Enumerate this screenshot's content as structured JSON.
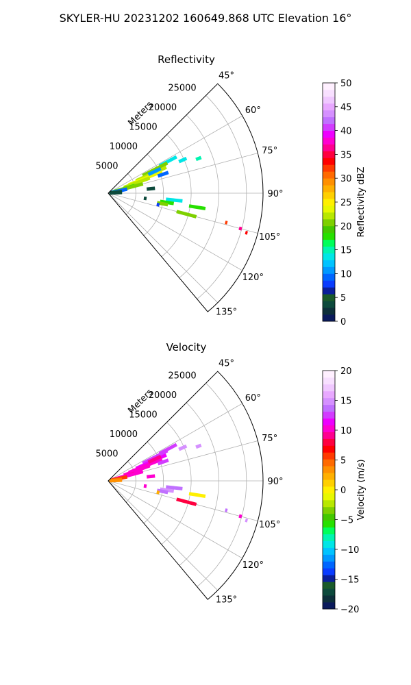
{
  "figure": {
    "suptitle": "SKYLER-HU  20231202  160649.868 UTC Elevation 16°"
  },
  "chart_data": [
    {
      "type": "polar-sector",
      "title": "Reflectivity",
      "radial_label": "Meters",
      "radial_ticks": [
        5000,
        10000,
        15000,
        20000,
        25000
      ],
      "radial_tick_labels": [
        "5000",
        "10000",
        "15000",
        "20000",
        "25000"
      ],
      "r_max": 28000,
      "angle_range_deg": [
        45,
        140
      ],
      "angle_ticks": [
        45,
        60,
        75,
        90,
        105,
        120,
        135
      ],
      "angle_tick_labels": [
        "45°",
        "60°",
        "75°",
        "90°",
        "105°",
        "120°",
        "135°"
      ],
      "grid": true,
      "colorbar": {
        "label": "Reflectivity dBZ",
        "range": [
          0,
          50
        ],
        "ticks": [
          0,
          5,
          10,
          15,
          20,
          25,
          30,
          35,
          40,
          45,
          50
        ],
        "tick_labels": [
          "0",
          "5",
          "10",
          "15",
          "20",
          "25",
          "30",
          "35",
          "40",
          "45",
          "50"
        ],
        "colors": [
          "#0a1a5c",
          "#0d2f3a",
          "#0d4a3c",
          "#1a5a2a",
          "#0b1f9a",
          "#0a3cff",
          "#0066ff",
          "#0099ff",
          "#00c3ff",
          "#00e6e6",
          "#00f5b0",
          "#00ff5a",
          "#27e000",
          "#44c800",
          "#7ed000",
          "#b8e800",
          "#e8f800",
          "#fff000",
          "#ffd000",
          "#ffb000",
          "#ff9000",
          "#ff6a00",
          "#ff3a00",
          "#ff0000",
          "#ff0040",
          "#ff0090",
          "#ff00d0",
          "#ee00ff",
          "#d23cff",
          "#c070ff",
          "#d590ff",
          "#e8a8ff",
          "#f0c8ff",
          "#f8e0ff",
          "#fff0ff"
        ]
      },
      "echoes": [
        {
          "az": 62,
          "r": [
            10500,
            14000
          ],
          "value": 14
        },
        {
          "az": 63,
          "r": [
            7000,
            12000
          ],
          "value": 20
        },
        {
          "az": 66,
          "r": [
            5500,
            11500
          ],
          "value": 22
        },
        {
          "az": 68,
          "r": [
            4000,
            10500
          ],
          "value": 24
        },
        {
          "az": 65,
          "r": [
            8000,
            10500
          ],
          "value": 10
        },
        {
          "az": 70,
          "r": [
            3000,
            8000
          ],
          "value": 22
        },
        {
          "az": 71,
          "r": [
            9500,
            11500
          ],
          "value": 9
        },
        {
          "az": 74,
          "r": [
            800,
            5000
          ],
          "value": 18
        },
        {
          "az": 75,
          "r": [
            1500,
            6500
          ],
          "value": 20
        },
        {
          "az": 78,
          "r": [
            400,
            3500
          ],
          "value": 9
        },
        {
          "az": 83,
          "r": [
            300,
            2500
          ],
          "value": 5
        },
        {
          "az": 87,
          "r": [
            200,
            2500
          ],
          "value": 3
        },
        {
          "az": 66,
          "r": [
            14000,
            15500
          ],
          "value": 14
        },
        {
          "az": 69,
          "r": [
            17000,
            18000
          ],
          "value": 15
        },
        {
          "az": 84,
          "r": [
            7000,
            8500
          ],
          "value": 4
        },
        {
          "az": 96,
          "r": [
            10500,
            13500
          ],
          "value": 14
        },
        {
          "az": 99,
          "r": [
            9500,
            12000
          ],
          "value": 18
        },
        {
          "az": 101,
          "r": [
            9000,
            11000
          ],
          "value": 20
        },
        {
          "az": 98,
          "r": [
            6500,
            7000
          ],
          "value": 4
        },
        {
          "az": 103,
          "r": [
            9000,
            9500
          ],
          "value": 8
        },
        {
          "az": 99,
          "r": [
            14800,
            17800
          ],
          "value": 18
        },
        {
          "az": 105,
          "r": [
            12800,
            16500
          ],
          "value": 20
        },
        {
          "az": 104,
          "r": [
            21800,
            22200
          ],
          "value": 32
        },
        {
          "az": 105,
          "r": [
            24500,
            25000
          ],
          "value": 36
        },
        {
          "az": 106,
          "r": [
            25800,
            26200
          ],
          "value": 34
        }
      ]
    },
    {
      "type": "polar-sector",
      "title": "Velocity",
      "radial_label": "Meters",
      "radial_ticks": [
        5000,
        10000,
        15000,
        20000,
        25000
      ],
      "radial_tick_labels": [
        "5000",
        "10000",
        "15000",
        "20000",
        "25000"
      ],
      "r_max": 28000,
      "angle_range_deg": [
        45,
        140
      ],
      "angle_ticks": [
        45,
        60,
        75,
        90,
        105,
        120,
        135
      ],
      "angle_tick_labels": [
        "45°",
        "60°",
        "75°",
        "90°",
        "105°",
        "120°",
        "135°"
      ],
      "grid": true,
      "colorbar": {
        "label": "Velocity (m/s)",
        "range": [
          -20,
          20
        ],
        "ticks": [
          -20,
          -15,
          -10,
          -5,
          0,
          5,
          10,
          15,
          20
        ],
        "tick_labels": [
          "−20",
          "−15",
          "−10",
          "−5",
          "0",
          "5",
          "10",
          "15",
          "20"
        ],
        "colors": [
          "#0a1a5c",
          "#0d2f3a",
          "#0d4a3c",
          "#1a5a2a",
          "#0b1f9a",
          "#0a3cff",
          "#0066ff",
          "#0099ff",
          "#00c3ff",
          "#00e6e6",
          "#00f5b0",
          "#00ff5a",
          "#27e000",
          "#44c800",
          "#7ed000",
          "#b8e800",
          "#e8f800",
          "#fff000",
          "#ffd000",
          "#ffb000",
          "#ff9000",
          "#ff6a00",
          "#ff3a00",
          "#ff0000",
          "#ff0040",
          "#ff0090",
          "#ff00d0",
          "#ee00ff",
          "#d23cff",
          "#c070ff",
          "#d590ff",
          "#e8a8ff",
          "#f0c8ff",
          "#f8e0ff",
          "#fff0ff"
        ]
      },
      "echoes": [
        {
          "az": 62,
          "r": [
            10500,
            14000
          ],
          "value": 13
        },
        {
          "az": 63,
          "r": [
            7000,
            12000
          ],
          "value": 12
        },
        {
          "az": 66,
          "r": [
            5500,
            11500
          ],
          "value": 11
        },
        {
          "az": 68,
          "r": [
            4000,
            10500
          ],
          "value": 10
        },
        {
          "az": 65,
          "r": [
            8000,
            10500
          ],
          "value": 9
        },
        {
          "az": 70,
          "r": [
            3000,
            8000
          ],
          "value": 10
        },
        {
          "az": 71,
          "r": [
            9500,
            11500
          ],
          "value": 13
        },
        {
          "az": 74,
          "r": [
            800,
            5000
          ],
          "value": 9
        },
        {
          "az": 75,
          "r": [
            1500,
            6500
          ],
          "value": 10
        },
        {
          "az": 78,
          "r": [
            400,
            3500
          ],
          "value": 6
        },
        {
          "az": 83,
          "r": [
            300,
            2500
          ],
          "value": 4
        },
        {
          "az": 87,
          "r": [
            200,
            2500
          ],
          "value": 3
        },
        {
          "az": 66,
          "r": [
            14000,
            15500
          ],
          "value": 15
        },
        {
          "az": 69,
          "r": [
            17000,
            18000
          ],
          "value": 15
        },
        {
          "az": 84,
          "r": [
            7000,
            8500
          ],
          "value": 10
        },
        {
          "az": 96,
          "r": [
            10500,
            13500
          ],
          "value": 14
        },
        {
          "az": 99,
          "r": [
            9500,
            12000
          ],
          "value": 15
        },
        {
          "az": 101,
          "r": [
            9000,
            11000
          ],
          "value": 14
        },
        {
          "az": 98,
          "r": [
            6500,
            7000
          ],
          "value": 10
        },
        {
          "az": 103,
          "r": [
            9000,
            9500
          ],
          "value": 2
        },
        {
          "az": 99,
          "r": [
            14800,
            17800
          ],
          "value": 0
        },
        {
          "az": 105,
          "r": [
            12800,
            16500
          ],
          "value": 8
        },
        {
          "az": 104,
          "r": [
            21800,
            22200
          ],
          "value": 14
        },
        {
          "az": 105,
          "r": [
            24500,
            25000
          ],
          "value": 10
        },
        {
          "az": 106,
          "r": [
            25800,
            26200
          ],
          "value": 15
        }
      ]
    }
  ]
}
